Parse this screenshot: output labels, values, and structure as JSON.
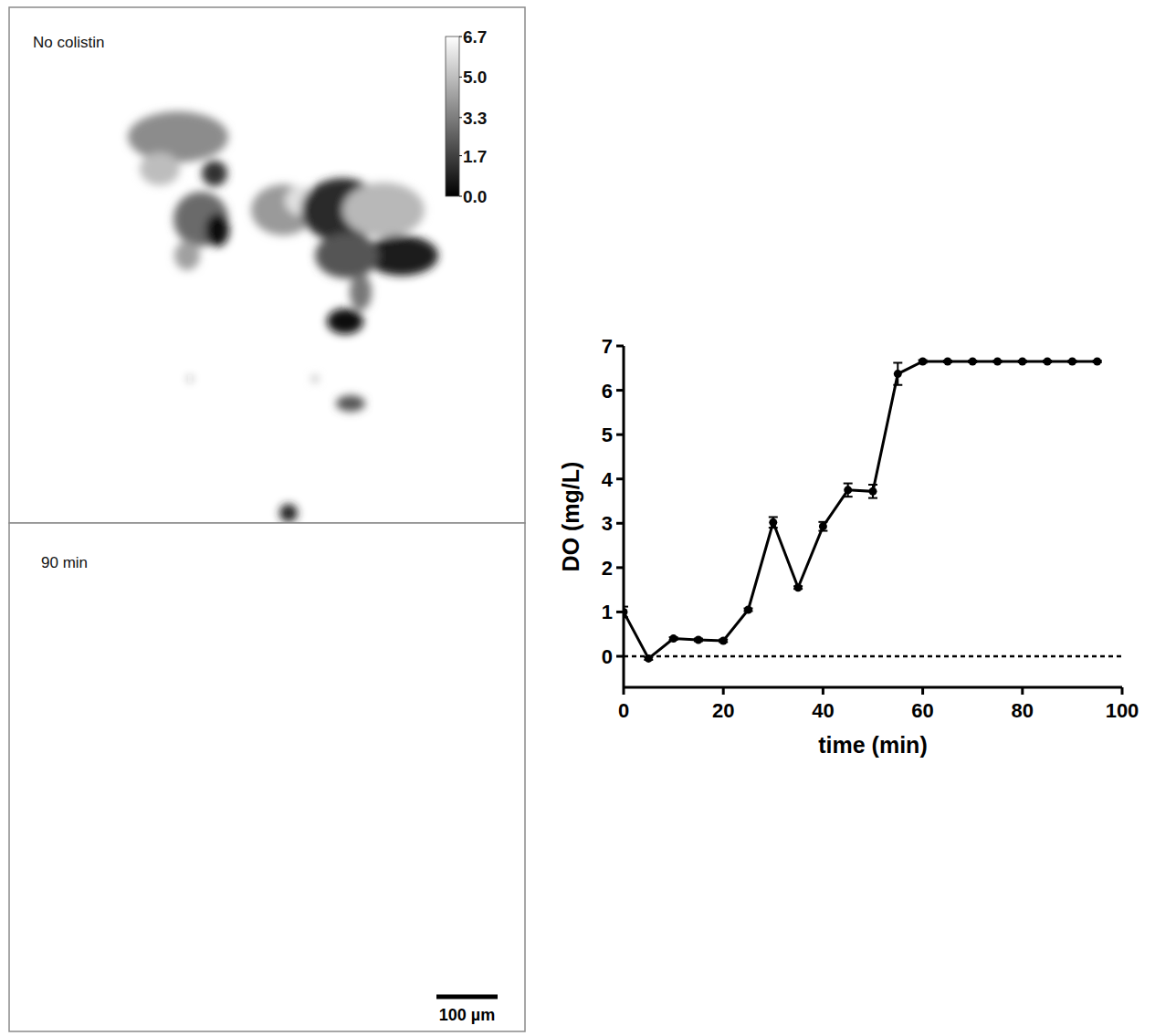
{
  "chart_data": [
    {
      "type": "image",
      "title": "No colistin",
      "colorbar": {
        "range": [
          0,
          6.7
        ],
        "ticks": [
          {
            "value": 0,
            "label": "0.0"
          },
          1.7,
          3.3,
          {
            "value": 5,
            "label": "5.0"
          },
          6.7
        ]
      }
    },
    {
      "type": "image",
      "title": "90 min",
      "scale_bar": {
        "value": 100,
        "label": "100 µm"
      }
    },
    {
      "type": "line",
      "x_label": "time (min)",
      "y_label": "DO (mg/L)",
      "x": [
        0,
        5,
        10,
        15,
        20,
        25,
        30,
        35,
        40,
        45,
        50,
        55,
        60,
        65,
        70,
        75,
        80,
        85,
        90,
        95
      ],
      "series": [
        {
          "name": "DO",
          "color": "#000000",
          "marker": "circle",
          "line_style": "solid",
          "values": [
            1.0,
            -0.05,
            0.4,
            0.37,
            0.35,
            1.05,
            3.02,
            1.55,
            2.93,
            3.75,
            3.72,
            6.37,
            6.65,
            6.65,
            6.65,
            6.65,
            6.65,
            6.65,
            6.65,
            6.65
          ],
          "errors": [
            0.12,
            0.03,
            0.03,
            0.03,
            0.03,
            0.03,
            0.12,
            0.03,
            0.1,
            0.15,
            0.15,
            0.25,
            0.03,
            0.02,
            0.02,
            0.02,
            0.02,
            0.02,
            0.02,
            0.02
          ]
        }
      ],
      "reference_lines": [
        0
      ],
      "xlim": [
        0,
        100
      ],
      "xticks": [
        0,
        20,
        40,
        60,
        80,
        100
      ],
      "ylim": [
        -0.7,
        7
      ],
      "yticks": [
        0,
        1,
        2,
        3,
        4,
        5,
        6,
        7
      ]
    }
  ]
}
